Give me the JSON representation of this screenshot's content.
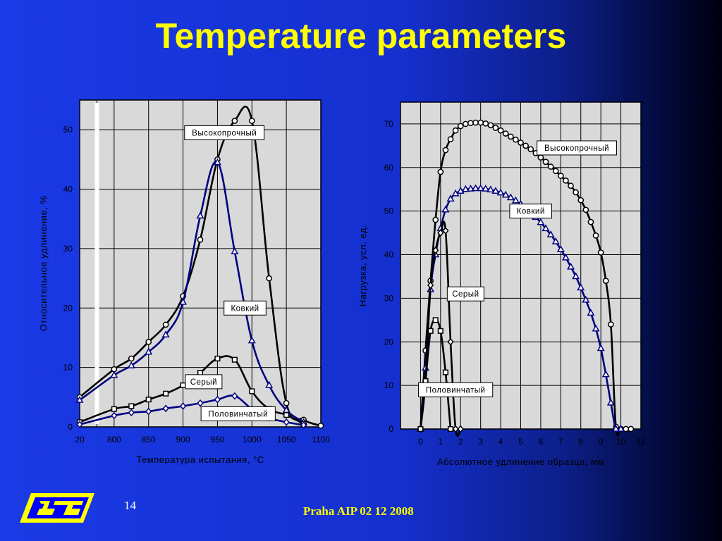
{
  "slide": {
    "title": "Temperature parameters",
    "slide_number": "14",
    "footer": "Praha AIP 02 12 2008",
    "logo": "logo-icon"
  },
  "colors": {
    "background": "#1530cf",
    "title": "#ffff00",
    "plot_bg": "#d9d9d9",
    "black_series": "#000000",
    "navy_series": "#000080",
    "logo_yellow": "#ffff00",
    "logo_blue": "#0000ff"
  },
  "chart_data": [
    {
      "type": "line",
      "title": "",
      "xlabel": "Температура испытания,   °С",
      "ylabel": "Относительное удлинение, %",
      "x_tick_labels": [
        "20",
        "800",
        "850",
        "900",
        "950",
        "1000",
        "1050",
        "1100"
      ],
      "y_ticks": [
        0,
        10,
        20,
        30,
        40,
        50
      ],
      "xlim": [
        750,
        1100
      ],
      "ylim": [
        0,
        55
      ],
      "grid": true,
      "series": [
        {
          "name": "Высокопрочный",
          "color": "#000000",
          "marker": "circle",
          "x": [
            750,
            800,
            825,
            850,
            875,
            900,
            925,
            950,
            975,
            1000,
            1025,
            1050,
            1075,
            1100
          ],
          "y": [
            5,
            9.7,
            11.5,
            14.3,
            17.2,
            22,
            31.5,
            45,
            51.5,
            51.5,
            25,
            4,
            1.2,
            0.2
          ],
          "label_pos": [
            960,
            49.5
          ]
        },
        {
          "name": "Ковкий",
          "color": "#000080",
          "marker": "triangle",
          "x": [
            750,
            800,
            825,
            850,
            875,
            900,
            925,
            950,
            975,
            1000,
            1025,
            1050,
            1075
          ],
          "y": [
            4.5,
            8.7,
            10.3,
            12.6,
            15.5,
            21,
            35.5,
            44.5,
            29.5,
            14.5,
            7,
            2.8,
            0.8
          ],
          "label_pos": [
            990,
            20
          ]
        },
        {
          "name": "Серый",
          "color": "#000000",
          "marker": "square",
          "x": [
            750,
            800,
            825,
            850,
            875,
            900,
            925,
            950,
            975,
            1000,
            1025,
            1050,
            1075
          ],
          "y": [
            0.8,
            3,
            3.5,
            4.6,
            5.6,
            7,
            9.1,
            11.5,
            11.3,
            6,
            3,
            2,
            0.5
          ],
          "label_pos": [
            930,
            7.6
          ]
        },
        {
          "name": "Половинчатый",
          "color": "#000080",
          "marker": "diamond",
          "x": [
            750,
            800,
            825,
            850,
            875,
            900,
            925,
            950,
            975,
            1000,
            1025,
            1050,
            1075
          ],
          "y": [
            0.4,
            1.9,
            2.4,
            2.6,
            3.1,
            3.5,
            4,
            4.6,
            5.2,
            3,
            1.5,
            0.8,
            0.3
          ],
          "label_pos": [
            980,
            2.2
          ]
        }
      ],
      "break_marker_x": 775
    },
    {
      "type": "line",
      "title": "",
      "xlabel": "Абсолютное удлинение образца, мм",
      "ylabel": "Нагрузка, усл. ед.",
      "x_ticks": [
        0,
        1,
        2,
        3,
        4,
        5,
        6,
        7,
        8,
        9,
        10,
        11
      ],
      "y_ticks": [
        0,
        10,
        20,
        30,
        40,
        50,
        60,
        70
      ],
      "xlim": [
        -1,
        11
      ],
      "ylim": [
        0,
        75
      ],
      "grid": true,
      "series": [
        {
          "name": "Высокопрочный",
          "color": "#000000",
          "marker": "circle",
          "x": [
            0,
            0.25,
            0.5,
            0.75,
            1,
            1.25,
            1.5,
            1.75,
            2,
            2.25,
            2.5,
            2.75,
            3,
            3.25,
            3.5,
            3.75,
            4,
            4.25,
            4.5,
            4.75,
            5,
            5.25,
            5.5,
            5.75,
            6,
            6.25,
            6.5,
            6.75,
            7,
            7.25,
            7.5,
            7.75,
            8,
            8.25,
            8.5,
            8.75,
            9,
            9.25,
            9.5,
            9.75,
            10,
            10.25,
            10.5
          ],
          "y": [
            0,
            18,
            34,
            48,
            59,
            64,
            66.5,
            68.5,
            69.5,
            70,
            70.2,
            70.3,
            70.3,
            70.1,
            69.7,
            69.1,
            68.5,
            67.8,
            67.1,
            66.4,
            65.7,
            65,
            64.2,
            63.3,
            62.3,
            61.3,
            60.2,
            59.2,
            58.1,
            57,
            55.8,
            54.3,
            52.5,
            50.3,
            47.5,
            44.4,
            40.5,
            34,
            24,
            0.5,
            0,
            0,
            0
          ],
          "label_pos": [
            7.8,
            64.5
          ]
        },
        {
          "name": "Ковкий",
          "color": "#000080",
          "marker": "triangle",
          "x": [
            0,
            0.25,
            0.5,
            0.75,
            1,
            1.25,
            1.5,
            1.75,
            2,
            2.25,
            2.5,
            2.75,
            3,
            3.25,
            3.5,
            3.75,
            4,
            4.25,
            4.5,
            4.75,
            5,
            5.25,
            5.5,
            5.75,
            6,
            6.25,
            6.5,
            6.75,
            7,
            7.25,
            7.5,
            7.75,
            8,
            8.25,
            8.5,
            8.75,
            9,
            9.25,
            9.5,
            9.75,
            10
          ],
          "y": [
            0,
            14,
            32,
            40,
            46,
            50.3,
            52.8,
            54,
            54.6,
            55,
            55.1,
            55.2,
            55.2,
            55.1,
            54.9,
            54.6,
            54.2,
            53.7,
            53.1,
            52.4,
            51.6,
            50.7,
            49.7,
            48.6,
            47.4,
            46,
            44.6,
            43,
            41.2,
            39.3,
            37.2,
            35,
            32.4,
            29.6,
            26.6,
            23,
            18.5,
            12.5,
            6,
            0,
            0
          ],
          "label_pos": [
            5.5,
            50
          ]
        },
        {
          "name": "Серый",
          "color": "#000000",
          "marker": "diamond",
          "x": [
            0,
            0.25,
            0.5,
            0.75,
            1,
            1.25,
            1.5,
            1.75,
            2
          ],
          "y": [
            0,
            11,
            33,
            41,
            45,
            45.5,
            20,
            0,
            0
          ],
          "label_pos": [
            2.25,
            31
          ]
        },
        {
          "name": "Половинчатый",
          "color": "#000000",
          "marker": "square",
          "x": [
            0,
            0.25,
            0.5,
            0.75,
            1,
            1.25,
            1.5
          ],
          "y": [
            0,
            11,
            22.5,
            25,
            22.5,
            13,
            0
          ],
          "label_pos": [
            1.75,
            9
          ]
        }
      ]
    }
  ]
}
